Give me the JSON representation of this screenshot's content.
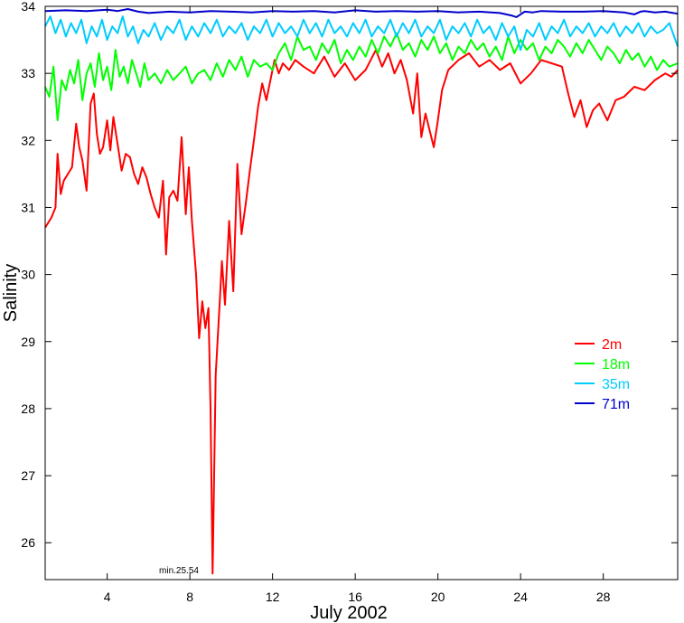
{
  "chart_data": {
    "type": "line",
    "xlabel": "July 2002",
    "ylabel": "Salinity",
    "xlim": [
      1,
      31.6
    ],
    "ylim": [
      25.45,
      34
    ],
    "x_ticks": [
      4,
      8,
      12,
      16,
      20,
      24,
      28
    ],
    "y_ticks": [
      26,
      27,
      28,
      29,
      30,
      31,
      32,
      33,
      34
    ],
    "grid": false,
    "legend_position": "right",
    "annotation": {
      "text": "min.25.54",
      "x": 9.0,
      "y": 25.54
    },
    "series": [
      {
        "name": "2m",
        "color": "#ff0000",
        "x": [
          1.0,
          1.3,
          1.5,
          1.6,
          1.75,
          1.9,
          2.1,
          2.3,
          2.5,
          2.65,
          2.8,
          3.0,
          3.2,
          3.35,
          3.5,
          3.65,
          3.8,
          4.0,
          4.15,
          4.3,
          4.5,
          4.7,
          4.9,
          5.1,
          5.3,
          5.5,
          5.7,
          5.9,
          6.1,
          6.3,
          6.5,
          6.7,
          6.85,
          7.0,
          7.2,
          7.4,
          7.6,
          7.8,
          7.95,
          8.1,
          8.3,
          8.45,
          8.6,
          8.75,
          8.9,
          9.0,
          9.1,
          9.25,
          9.4,
          9.55,
          9.7,
          9.9,
          10.1,
          10.3,
          10.5,
          10.7,
          10.9,
          11.1,
          11.3,
          11.5,
          11.7,
          11.9,
          12.1,
          12.3,
          12.5,
          12.8,
          13.1,
          13.5,
          14.0,
          14.5,
          15.0,
          15.5,
          16.0,
          16.5,
          17.0,
          17.3,
          17.6,
          17.9,
          18.2,
          18.5,
          18.8,
          19.0,
          19.2,
          19.4,
          19.6,
          19.8,
          20.0,
          20.2,
          20.5,
          21.0,
          21.5,
          22.0,
          22.5,
          23.0,
          23.5,
          24.0,
          24.5,
          25.0,
          25.5,
          26.0,
          26.3,
          26.6,
          26.9,
          27.2,
          27.5,
          27.8,
          28.2,
          28.6,
          29.0,
          29.5,
          30.0,
          30.5,
          31.0,
          31.3,
          31.6
        ],
        "y": [
          30.7,
          30.85,
          31.0,
          31.8,
          31.2,
          31.4,
          31.5,
          31.6,
          32.25,
          31.9,
          31.7,
          31.25,
          32.55,
          32.7,
          32.1,
          31.8,
          31.9,
          32.3,
          31.85,
          32.35,
          31.95,
          31.55,
          31.8,
          31.75,
          31.5,
          31.35,
          31.6,
          31.45,
          31.2,
          31.0,
          30.85,
          31.4,
          30.3,
          31.15,
          31.25,
          31.1,
          32.05,
          30.9,
          31.6,
          30.8,
          30.0,
          29.05,
          29.6,
          29.2,
          29.5,
          28.0,
          25.54,
          28.5,
          29.35,
          30.2,
          29.55,
          30.8,
          29.75,
          31.65,
          30.6,
          31.05,
          31.55,
          32.0,
          32.5,
          32.85,
          32.6,
          32.9,
          33.2,
          33.0,
          33.15,
          33.05,
          33.2,
          33.1,
          33.0,
          33.25,
          32.95,
          33.15,
          32.9,
          33.05,
          33.35,
          33.1,
          33.3,
          33.0,
          33.2,
          32.9,
          32.4,
          33.0,
          32.05,
          32.4,
          32.15,
          31.9,
          32.3,
          32.75,
          33.05,
          33.2,
          33.3,
          33.1,
          33.2,
          33.05,
          33.15,
          32.85,
          33.0,
          33.2,
          33.15,
          33.1,
          32.7,
          32.35,
          32.6,
          32.2,
          32.45,
          32.55,
          32.3,
          32.6,
          32.65,
          32.8,
          32.75,
          32.9,
          33.0,
          32.95,
          33.05
        ]
      },
      {
        "name": "18m",
        "color": "#00ff00",
        "x": [
          1.0,
          1.2,
          1.4,
          1.6,
          1.8,
          2.0,
          2.2,
          2.4,
          2.6,
          2.8,
          3.0,
          3.2,
          3.4,
          3.6,
          3.8,
          4.0,
          4.2,
          4.4,
          4.6,
          4.8,
          5.0,
          5.2,
          5.4,
          5.6,
          5.8,
          6.0,
          6.3,
          6.6,
          6.9,
          7.2,
          7.5,
          7.8,
          8.1,
          8.4,
          8.7,
          9.0,
          9.3,
          9.6,
          9.9,
          10.2,
          10.5,
          10.8,
          11.1,
          11.4,
          11.7,
          12.0,
          12.3,
          12.6,
          12.9,
          13.2,
          13.5,
          13.8,
          14.1,
          14.4,
          14.7,
          15.0,
          15.3,
          15.6,
          15.9,
          16.2,
          16.5,
          16.8,
          17.1,
          17.4,
          17.7,
          18.0,
          18.3,
          18.6,
          18.9,
          19.2,
          19.5,
          19.8,
          20.1,
          20.4,
          20.7,
          21.0,
          21.3,
          21.6,
          21.9,
          22.2,
          22.5,
          22.8,
          23.1,
          23.4,
          23.7,
          24.0,
          24.3,
          24.6,
          24.9,
          25.2,
          25.5,
          25.8,
          26.1,
          26.4,
          26.7,
          27.0,
          27.3,
          27.6,
          27.9,
          28.2,
          28.5,
          28.8,
          29.1,
          29.4,
          29.7,
          30.0,
          30.3,
          30.6,
          30.9,
          31.2,
          31.6
        ],
        "y": [
          32.8,
          32.65,
          33.1,
          32.3,
          32.9,
          32.75,
          33.05,
          32.85,
          33.2,
          32.6,
          33.0,
          33.15,
          32.8,
          33.3,
          32.9,
          33.1,
          32.75,
          33.35,
          32.95,
          33.1,
          32.85,
          33.2,
          33.0,
          32.8,
          33.15,
          32.9,
          33.0,
          32.85,
          33.05,
          32.9,
          33.0,
          33.1,
          32.85,
          33.0,
          33.05,
          32.9,
          33.15,
          32.95,
          33.2,
          33.05,
          33.25,
          32.95,
          33.2,
          33.1,
          33.15,
          33.05,
          33.3,
          33.45,
          33.2,
          33.55,
          33.35,
          33.4,
          33.2,
          33.45,
          33.3,
          33.5,
          33.15,
          33.35,
          33.2,
          33.4,
          33.25,
          33.5,
          33.3,
          33.55,
          33.4,
          33.6,
          33.35,
          33.45,
          33.25,
          33.5,
          33.35,
          33.55,
          33.3,
          33.45,
          33.2,
          33.4,
          33.3,
          33.5,
          33.35,
          33.45,
          33.25,
          33.4,
          33.2,
          33.55,
          33.3,
          33.5,
          33.35,
          33.45,
          33.2,
          33.4,
          33.3,
          33.5,
          33.4,
          33.25,
          33.45,
          33.3,
          33.5,
          33.35,
          33.2,
          33.4,
          33.3,
          33.15,
          33.35,
          33.2,
          33.3,
          33.1,
          33.25,
          33.05,
          33.2,
          33.1,
          33.15
        ]
      },
      {
        "name": "35m",
        "color": "#00ccff",
        "x": [
          1.0,
          1.25,
          1.5,
          1.75,
          2.0,
          2.25,
          2.5,
          2.75,
          3.0,
          3.25,
          3.5,
          3.75,
          4.0,
          4.25,
          4.5,
          4.75,
          5.0,
          5.25,
          5.5,
          5.75,
          6.0,
          6.3,
          6.6,
          6.9,
          7.2,
          7.5,
          7.8,
          8.1,
          8.4,
          8.7,
          9.0,
          9.3,
          9.6,
          9.9,
          10.2,
          10.5,
          10.8,
          11.1,
          11.4,
          11.7,
          12.0,
          12.3,
          12.6,
          12.9,
          13.2,
          13.5,
          13.8,
          14.1,
          14.4,
          14.7,
          15.0,
          15.3,
          15.6,
          15.9,
          16.2,
          16.5,
          16.8,
          17.1,
          17.4,
          17.7,
          18.0,
          18.3,
          18.6,
          18.9,
          19.2,
          19.5,
          19.8,
          20.1,
          20.4,
          20.7,
          21.0,
          21.3,
          21.6,
          21.9,
          22.2,
          22.5,
          22.8,
          23.1,
          23.4,
          23.7,
          24.0,
          24.3,
          24.6,
          24.9,
          25.2,
          25.5,
          25.8,
          26.1,
          26.4,
          26.7,
          27.0,
          27.3,
          27.6,
          27.9,
          28.2,
          28.5,
          28.8,
          29.1,
          29.4,
          29.7,
          30.0,
          30.3,
          30.6,
          30.9,
          31.2,
          31.6
        ],
        "y": [
          33.7,
          33.85,
          33.6,
          33.8,
          33.55,
          33.75,
          33.6,
          33.8,
          33.45,
          33.7,
          33.55,
          33.8,
          33.5,
          33.7,
          33.6,
          33.85,
          33.55,
          33.7,
          33.45,
          33.65,
          33.55,
          33.75,
          33.5,
          33.7,
          33.6,
          33.8,
          33.5,
          33.7,
          33.55,
          33.75,
          33.6,
          33.8,
          33.55,
          33.7,
          33.6,
          33.75,
          33.5,
          33.7,
          33.6,
          33.8,
          33.55,
          33.75,
          33.6,
          33.7,
          33.55,
          33.8,
          33.6,
          33.75,
          33.55,
          33.8,
          33.6,
          33.7,
          33.55,
          33.75,
          33.6,
          33.8,
          33.55,
          33.7,
          33.6,
          33.8,
          33.55,
          33.75,
          33.6,
          33.8,
          33.55,
          33.7,
          33.6,
          33.8,
          33.5,
          33.7,
          33.6,
          33.75,
          33.55,
          33.8,
          33.6,
          33.7,
          33.5,
          33.75,
          33.55,
          33.7,
          33.35,
          33.65,
          33.55,
          33.75,
          33.5,
          33.7,
          33.6,
          33.8,
          33.55,
          33.7,
          33.6,
          33.75,
          33.55,
          33.7,
          33.6,
          33.75,
          33.55,
          33.7,
          33.6,
          33.75,
          33.55,
          33.7,
          33.6,
          33.65,
          33.75,
          33.4
        ]
      },
      {
        "name": "71m",
        "color": "#0000cc",
        "x": [
          1.0,
          2.0,
          3.0,
          4.0,
          4.5,
          5.0,
          5.5,
          6.0,
          7.0,
          8.0,
          9.0,
          10.0,
          11.0,
          12.0,
          13.0,
          14.0,
          15.0,
          16.0,
          17.0,
          18.0,
          19.0,
          20.0,
          21.0,
          22.0,
          23.0,
          23.6,
          23.8,
          24.0,
          24.2,
          24.6,
          25.0,
          26.0,
          27.0,
          28.0,
          29.0,
          29.5,
          29.8,
          30.0,
          30.5,
          31.0,
          31.6
        ],
        "y": [
          33.93,
          33.94,
          33.93,
          33.95,
          33.93,
          33.96,
          33.92,
          33.9,
          33.92,
          33.91,
          33.93,
          33.92,
          33.91,
          33.93,
          33.92,
          33.93,
          33.91,
          33.94,
          33.92,
          33.93,
          33.92,
          33.93,
          33.91,
          33.92,
          33.9,
          33.86,
          33.84,
          33.88,
          33.92,
          33.91,
          33.93,
          33.92,
          33.92,
          33.93,
          33.91,
          33.88,
          33.92,
          33.93,
          33.91,
          33.92,
          33.89
        ]
      }
    ]
  }
}
